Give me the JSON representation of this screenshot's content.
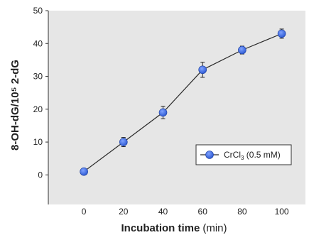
{
  "chart_data": {
    "type": "line",
    "x": [
      0,
      20,
      40,
      60,
      80,
      100
    ],
    "series": [
      {
        "name": "CrCl3 (0.5 mM)",
        "values": [
          1,
          10,
          19,
          32,
          38,
          43
        ],
        "errors": [
          0.6,
          1.4,
          1.9,
          2.3,
          1.2,
          1.4
        ]
      }
    ],
    "xticks": [
      "0",
      "20",
      "40",
      "60",
      "80",
      "100"
    ],
    "yticks": [
      "0",
      "10",
      "20",
      "30",
      "40",
      "50"
    ],
    "xlabel": "Incubation time",
    "xlabel_unit": "(min)",
    "ylabel": "8-OH-dG/10⁵ 2-dG",
    "legend_text": "CrCl",
    "legend_sub": "3",
    "legend_suffix": " (0.5 mM)",
    "xlim": [
      -18,
      112
    ],
    "ylim": [
      -9,
      50
    ],
    "grid": false,
    "legend_position": "lower-right",
    "colors": {
      "plot_background": "#e6e6e6",
      "marker": "#2f5bd3",
      "line": "#2a2a2a",
      "axis": "#333333"
    }
  }
}
